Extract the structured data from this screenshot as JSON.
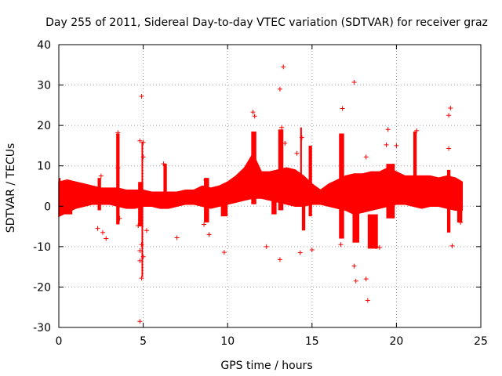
{
  "chart_data": {
    "type": "scatter",
    "title": "Day 255 of 2011, Sidereal Day-to-day VTEC variation (SDTVAR) for receiver graz",
    "xlabel": "GPS time / hours",
    "ylabel": "SDTVAR / TECUs",
    "xlim": [
      0,
      25
    ],
    "ylim": [
      -30,
      40
    ],
    "xticks": [
      0,
      5,
      10,
      15,
      20,
      25
    ],
    "yticks": [
      -30,
      -20,
      -10,
      0,
      10,
      20,
      30,
      40
    ],
    "grid": true,
    "marker": "+",
    "color": "#ff0000",
    "series": [
      {
        "name": "SDTVAR",
        "band": [
          {
            "x": 0.0,
            "lo": -2.5,
            "hi": 6.0
          },
          {
            "x": 0.5,
            "lo": -1.5,
            "hi": 6.5
          },
          {
            "x": 1.0,
            "lo": -0.5,
            "hi": 6.0
          },
          {
            "x": 1.5,
            "lo": 0.0,
            "hi": 5.5
          },
          {
            "x": 2.0,
            "lo": 0.5,
            "hi": 5.0
          },
          {
            "x": 2.5,
            "lo": 0.5,
            "hi": 4.5
          },
          {
            "x": 3.0,
            "lo": 0.5,
            "hi": 4.5
          },
          {
            "x": 3.5,
            "lo": 0.0,
            "hi": 4.5
          },
          {
            "x": 4.0,
            "lo": -0.5,
            "hi": 4.0
          },
          {
            "x": 4.5,
            "lo": -0.5,
            "hi": 4.0
          },
          {
            "x": 5.0,
            "lo": 0.0,
            "hi": 4.0
          },
          {
            "x": 5.5,
            "lo": 0.0,
            "hi": 3.5
          },
          {
            "x": 6.0,
            "lo": -0.5,
            "hi": 3.5
          },
          {
            "x": 6.5,
            "lo": -0.5,
            "hi": 3.5
          },
          {
            "x": 7.0,
            "lo": 0.0,
            "hi": 3.5
          },
          {
            "x": 7.5,
            "lo": 0.5,
            "hi": 4.0
          },
          {
            "x": 8.0,
            "lo": 0.5,
            "hi": 4.0
          },
          {
            "x": 8.5,
            "lo": 0.0,
            "hi": 5.0
          },
          {
            "x": 9.0,
            "lo": -0.5,
            "hi": 4.5
          },
          {
            "x": 9.5,
            "lo": 0.0,
            "hi": 5.0
          },
          {
            "x": 10.0,
            "lo": 0.5,
            "hi": 6.0
          },
          {
            "x": 10.5,
            "lo": 1.0,
            "hi": 7.5
          },
          {
            "x": 11.0,
            "lo": 1.5,
            "hi": 9.5
          },
          {
            "x": 11.5,
            "lo": 2.0,
            "hi": 13.0
          },
          {
            "x": 12.0,
            "lo": 2.0,
            "hi": 8.5
          },
          {
            "x": 12.5,
            "lo": 1.5,
            "hi": 8.5
          },
          {
            "x": 13.0,
            "lo": 1.0,
            "hi": 9.0
          },
          {
            "x": 13.5,
            "lo": 0.5,
            "hi": 9.5
          },
          {
            "x": 14.0,
            "lo": 0.0,
            "hi": 9.0
          },
          {
            "x": 14.5,
            "lo": 0.0,
            "hi": 7.5
          },
          {
            "x": 15.0,
            "lo": 0.5,
            "hi": 5.5
          },
          {
            "x": 15.5,
            "lo": 0.5,
            "hi": 4.0
          },
          {
            "x": 16.0,
            "lo": 0.0,
            "hi": 5.5
          },
          {
            "x": 16.5,
            "lo": -0.5,
            "hi": 6.5
          },
          {
            "x": 17.0,
            "lo": -1.0,
            "hi": 7.5
          },
          {
            "x": 17.5,
            "lo": -2.0,
            "hi": 8.0
          },
          {
            "x": 18.0,
            "lo": -1.5,
            "hi": 8.0
          },
          {
            "x": 18.5,
            "lo": -1.0,
            "hi": 8.5
          },
          {
            "x": 19.0,
            "lo": -0.5,
            "hi": 8.5
          },
          {
            "x": 19.5,
            "lo": 0.0,
            "hi": 9.5
          },
          {
            "x": 20.0,
            "lo": 0.5,
            "hi": 8.5
          },
          {
            "x": 20.5,
            "lo": 0.5,
            "hi": 7.5
          },
          {
            "x": 21.0,
            "lo": 0.0,
            "hi": 7.5
          },
          {
            "x": 21.5,
            "lo": -0.5,
            "hi": 7.5
          },
          {
            "x": 22.0,
            "lo": 0.0,
            "hi": 7.5
          },
          {
            "x": 22.5,
            "lo": 0.0,
            "hi": 7.0
          },
          {
            "x": 23.0,
            "lo": -0.5,
            "hi": 7.5
          },
          {
            "x": 23.5,
            "lo": -1.0,
            "hi": 7.0
          },
          {
            "x": 23.9,
            "lo": -1.0,
            "hi": 6.0
          }
        ],
        "streaks": [
          {
            "x": [
              0.0,
              0.1
            ],
            "y": [
              -2.5,
              7.0
            ]
          },
          {
            "x": [
              0.3,
              0.8
            ],
            "y": [
              -2.0,
              1.5
            ]
          },
          {
            "x": [
              2.3,
              2.5
            ],
            "y": [
              -1.0,
              7.0
            ]
          },
          {
            "x": [
              3.4,
              3.6
            ],
            "y": [
              -4.5,
              18.0
            ]
          },
          {
            "x": [
              4.7,
              5.0
            ],
            "y": [
              -5.0,
              6.0
            ]
          },
          {
            "x": [
              4.9,
              4.9
            ],
            "y": [
              -17.5,
              16.0
            ]
          },
          {
            "x": [
              6.2,
              6.4
            ],
            "y": [
              0.0,
              10.5
            ]
          },
          {
            "x": [
              8.6,
              8.9
            ],
            "y": [
              -4.0,
              7.0
            ]
          },
          {
            "x": [
              9.6,
              10.0
            ],
            "y": [
              -2.5,
              2.0
            ]
          },
          {
            "x": [
              11.4,
              11.7
            ],
            "y": [
              0.5,
              18.5
            ]
          },
          {
            "x": [
              12.6,
              12.9
            ],
            "y": [
              -2.0,
              6.0
            ]
          },
          {
            "x": [
              13.0,
              13.3
            ],
            "y": [
              -1.0,
              19.0
            ]
          },
          {
            "x": [
              14.3,
              14.4
            ],
            "y": [
              3.0,
              19.5
            ]
          },
          {
            "x": [
              14.4,
              14.6
            ],
            "y": [
              -6.0,
              6.0
            ]
          },
          {
            "x": [
              14.8,
              15.0
            ],
            "y": [
              -2.5,
              15.0
            ]
          },
          {
            "x": [
              16.6,
              16.9
            ],
            "y": [
              -8.0,
              18.0
            ]
          },
          {
            "x": [
              17.4,
              17.8
            ],
            "y": [
              -9.0,
              4.0
            ]
          },
          {
            "x": [
              18.3,
              18.9
            ],
            "y": [
              -10.5,
              -2.0
            ]
          },
          {
            "x": [
              19.4,
              19.9
            ],
            "y": [
              -3.0,
              10.5
            ]
          },
          {
            "x": [
              21.0,
              21.2
            ],
            "y": [
              5.0,
              18.5
            ]
          },
          {
            "x": [
              23.0,
              23.2
            ],
            "y": [
              -6.5,
              9.0
            ]
          },
          {
            "x": [
              23.6,
              23.9
            ],
            "y": [
              -4.0,
              5.0
            ]
          }
        ],
        "outliers": [
          {
            "x": 13.3,
            "y": 34.5
          },
          {
            "x": 13.1,
            "y": 29.0
          },
          {
            "x": 17.5,
            "y": 30.7
          },
          {
            "x": 4.9,
            "y": 27.2
          },
          {
            "x": 23.2,
            "y": 24.3
          },
          {
            "x": 23.1,
            "y": 22.5
          },
          {
            "x": 16.8,
            "y": 24.2
          },
          {
            "x": 11.5,
            "y": 23.3
          },
          {
            "x": 11.6,
            "y": 22.3
          },
          {
            "x": 13.2,
            "y": 19.5
          },
          {
            "x": 19.5,
            "y": 19.0
          },
          {
            "x": 21.2,
            "y": 18.7
          },
          {
            "x": 3.5,
            "y": 18.2
          },
          {
            "x": 14.4,
            "y": 17.0
          },
          {
            "x": 4.8,
            "y": 16.2
          },
          {
            "x": 5.0,
            "y": 15.8
          },
          {
            "x": 13.4,
            "y": 15.6
          },
          {
            "x": 19.4,
            "y": 15.2
          },
          {
            "x": 20.0,
            "y": 15.0
          },
          {
            "x": 23.1,
            "y": 14.3
          },
          {
            "x": 14.1,
            "y": 13.1
          },
          {
            "x": 18.2,
            "y": 12.2
          },
          {
            "x": 5.0,
            "y": 12.2
          },
          {
            "x": 6.2,
            "y": 10.5
          },
          {
            "x": 3.5,
            "y": 9.5
          },
          {
            "x": 2.5,
            "y": 7.5
          },
          {
            "x": 8.7,
            "y": 6.5
          },
          {
            "x": 3.6,
            "y": -3.0
          },
          {
            "x": 2.3,
            "y": -5.5
          },
          {
            "x": 2.6,
            "y": -6.5
          },
          {
            "x": 2.8,
            "y": -8.0
          },
          {
            "x": 4.7,
            "y": -4.8
          },
          {
            "x": 5.2,
            "y": -6.0
          },
          {
            "x": 7.0,
            "y": -7.8
          },
          {
            "x": 8.6,
            "y": -4.5
          },
          {
            "x": 8.9,
            "y": -7.0
          },
          {
            "x": 4.9,
            "y": -9.5
          },
          {
            "x": 4.8,
            "y": -11.0
          },
          {
            "x": 5.0,
            "y": -12.5
          },
          {
            "x": 4.8,
            "y": -13.5
          },
          {
            "x": 4.9,
            "y": -17.8
          },
          {
            "x": 4.8,
            "y": -28.5
          },
          {
            "x": 9.8,
            "y": -11.4
          },
          {
            "x": 12.3,
            "y": -10.0
          },
          {
            "x": 13.1,
            "y": -13.2
          },
          {
            "x": 14.3,
            "y": -11.5
          },
          {
            "x": 15.0,
            "y": -10.8
          },
          {
            "x": 16.7,
            "y": -9.5
          },
          {
            "x": 17.5,
            "y": -14.8
          },
          {
            "x": 17.6,
            "y": -18.5
          },
          {
            "x": 18.2,
            "y": -18.0
          },
          {
            "x": 18.3,
            "y": -23.3
          },
          {
            "x": 18.8,
            "y": -10.0
          },
          {
            "x": 19.0,
            "y": -10.2
          },
          {
            "x": 23.3,
            "y": -9.8
          },
          {
            "x": 23.8,
            "y": -4.0
          }
        ]
      }
    ]
  }
}
